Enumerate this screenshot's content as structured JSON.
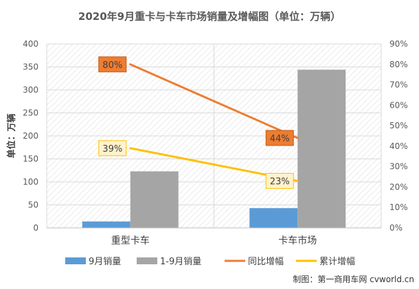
{
  "chart_data": {
    "type": "bar",
    "title": "2020年9月重卡与卡车市场销量及增幅图（单位：万辆）",
    "ylabel": "单位：万辆",
    "categories": [
      "重型卡车",
      "卡车市场"
    ],
    "ylim": [
      0,
      400
    ],
    "y_ticks": [
      "0",
      "50",
      "100",
      "150",
      "200",
      "250",
      "300",
      "350",
      "400"
    ],
    "y2lim": [
      0,
      0.9
    ],
    "y2_ticks": [
      "0%",
      "10%",
      "20%",
      "30%",
      "40%",
      "50%",
      "60%",
      "70%",
      "80%",
      "90%"
    ],
    "legend_position": "bottom",
    "grid": true,
    "series": [
      {
        "name": "9月销量",
        "kind": "bar",
        "axis": "left",
        "color": "#5b9bd5",
        "values": [
          14,
          43
        ]
      },
      {
        "name": "1-9月销量",
        "kind": "bar",
        "axis": "left",
        "color": "#a5a5a5",
        "values": [
          123,
          344
        ]
      },
      {
        "name": "同比增幅",
        "kind": "line",
        "axis": "right",
        "color": "#ed7d31",
        "values": [
          0.8,
          0.44
        ],
        "labels": [
          "80%",
          "44%"
        ]
      },
      {
        "name": "累计增幅",
        "kind": "line",
        "axis": "right",
        "color": "#ffc000",
        "values": [
          0.39,
          0.23
        ],
        "labels": [
          "39%",
          "23%"
        ]
      }
    ]
  },
  "source": "制图：第一商用车网 cvworld.cn"
}
